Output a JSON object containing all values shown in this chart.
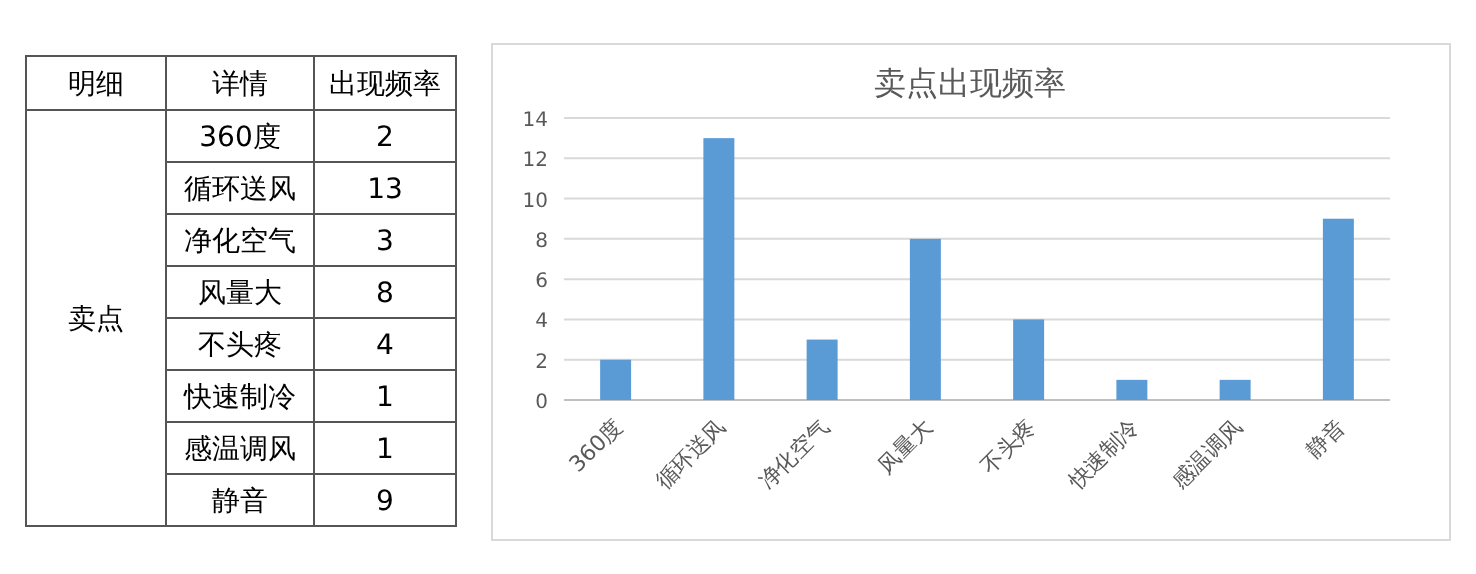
{
  "chart_data": [
    {
      "type": "other",
      "annotations": [
        "明细",
        "详情",
        "出现频率",
        "卖点",
        "360度",
        "2",
        "循环送风",
        "13",
        "净化空气",
        "3",
        "风量大",
        "8",
        "不头疼",
        "4",
        "快速制冷",
        "1",
        "感温调风",
        "1",
        "静音",
        "9"
      ]
    },
    {
      "type": "bar",
      "title": "卖点出现频率",
      "categories": [
        "360度",
        "循环送风",
        "净化空气",
        "风量大",
        "不头疼",
        "快速制冷",
        "感温调风",
        "静音"
      ],
      "values": [
        2,
        13,
        3,
        8,
        4,
        1,
        1,
        9
      ],
      "color": "#5b9bd5",
      "ylim": [
        0,
        14
      ],
      "yticks": [
        0,
        2,
        4,
        6,
        8,
        10,
        12,
        14
      ],
      "grid": "y"
    }
  ]
}
